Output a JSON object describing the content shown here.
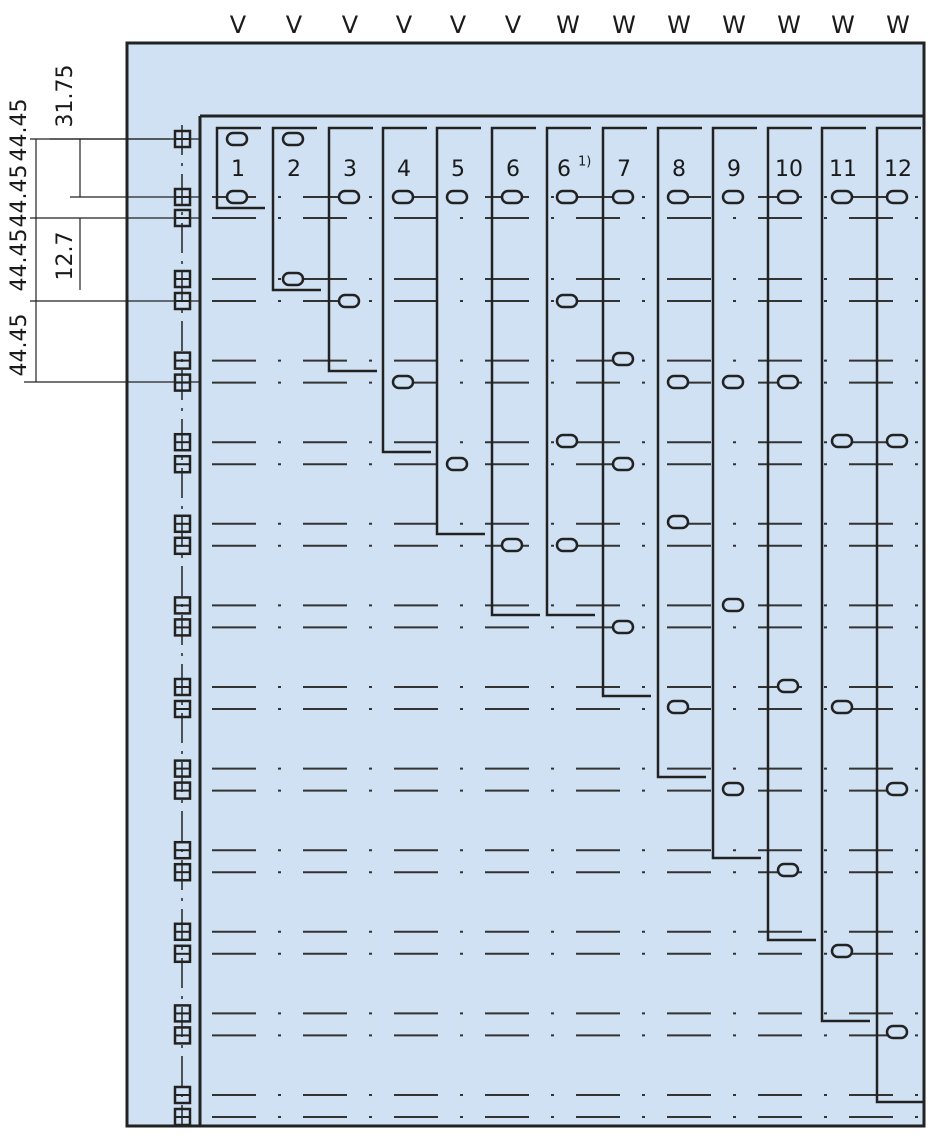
{
  "header": {
    "letters": [
      "V",
      "V",
      "V",
      "V",
      "V",
      "V",
      "W",
      "W",
      "W",
      "W",
      "W",
      "W",
      "W"
    ]
  },
  "columns": [
    {
      "label": "1"
    },
    {
      "label": "2"
    },
    {
      "label": "3"
    },
    {
      "label": "4"
    },
    {
      "label": "5"
    },
    {
      "label": "6"
    },
    {
      "label": "6",
      "note": "1)"
    },
    {
      "label": "7"
    },
    {
      "label": "8"
    },
    {
      "label": "9"
    },
    {
      "label": "10"
    },
    {
      "label": "11"
    },
    {
      "label": "12"
    }
  ],
  "dimensions": {
    "inner": [
      "31.75",
      "12.7"
    ],
    "outer": [
      "44.45",
      "44.45",
      "44.45",
      "44.45"
    ]
  }
}
